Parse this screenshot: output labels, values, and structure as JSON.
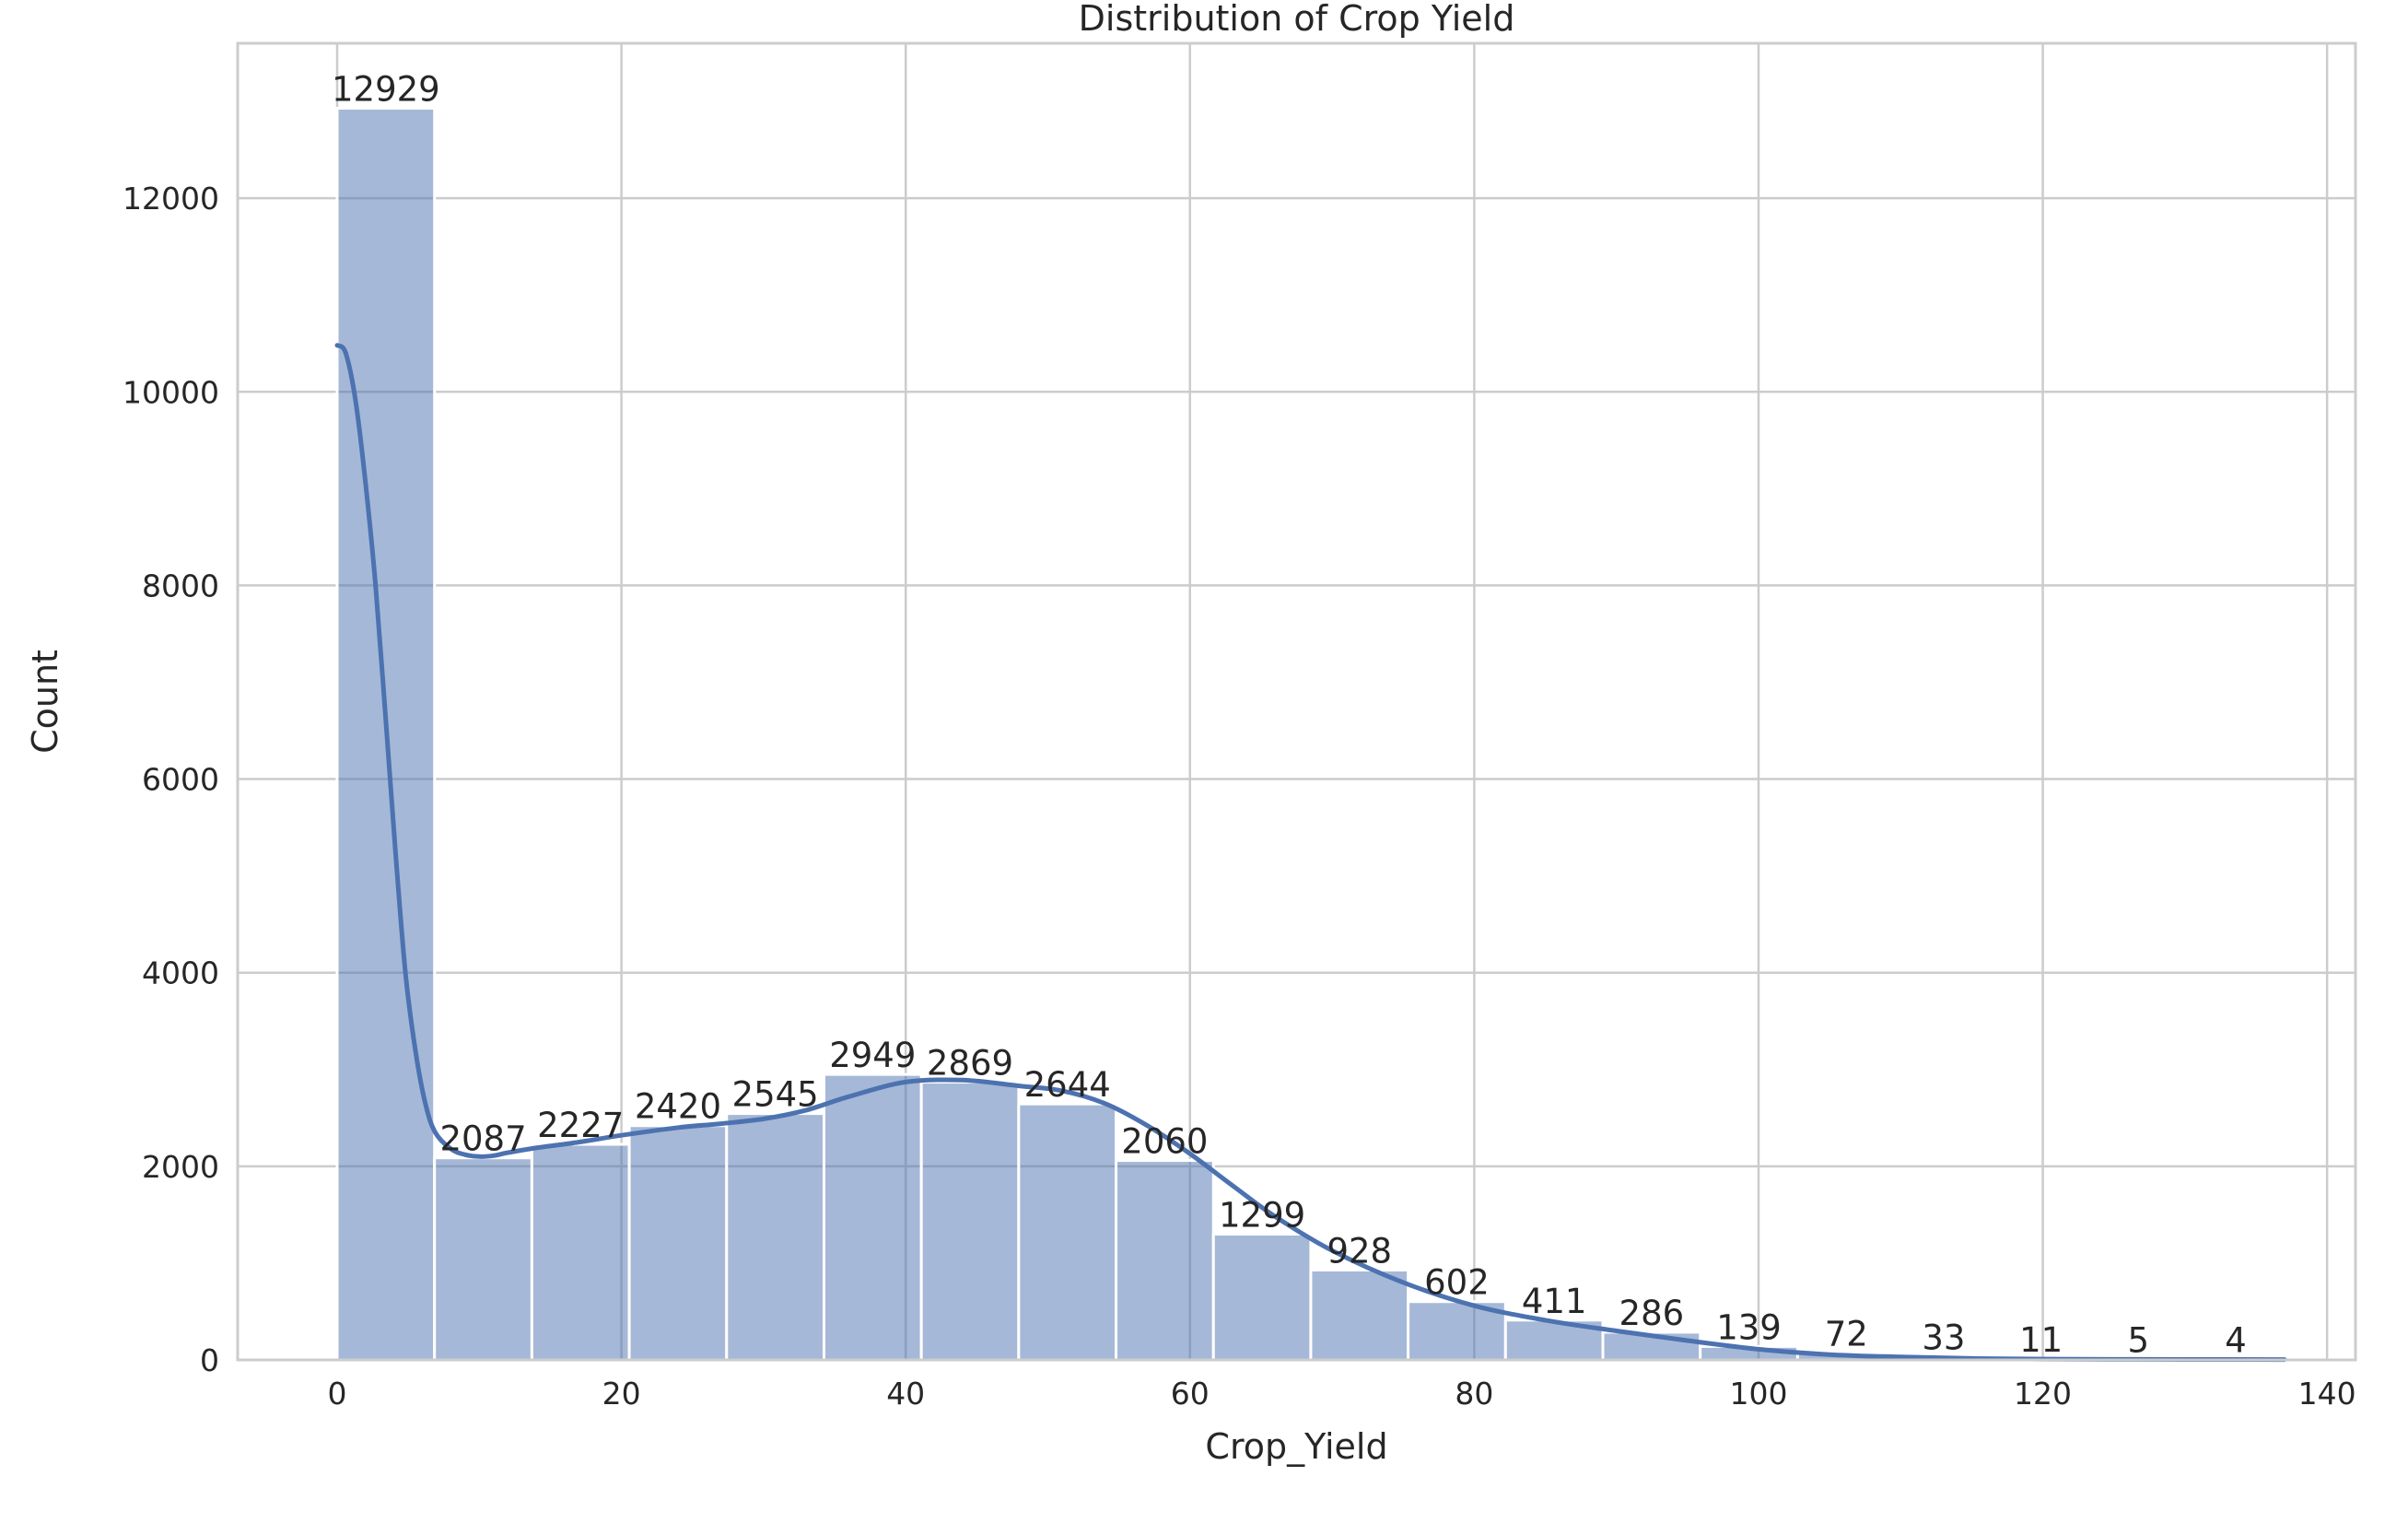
{
  "chart_data": {
    "type": "bar",
    "title": "Distribution of Crop Yield",
    "xlabel": "Crop_Yield",
    "ylabel": "Count",
    "xlim": [
      -7,
      142
    ],
    "ylim": [
      0,
      13600
    ],
    "xticks": [
      0,
      20,
      40,
      60,
      80,
      100,
      120,
      140
    ],
    "yticks": [
      0,
      2000,
      4000,
      6000,
      8000,
      10000,
      12000
    ],
    "bin_start": 0,
    "bin_width": 6.85,
    "values": [
      12929,
      2087,
      2227,
      2420,
      2545,
      2949,
      2869,
      2644,
      2060,
      1299,
      928,
      602,
      411,
      286,
      139,
      72,
      33,
      11,
      5,
      4
    ],
    "value_labels": [
      "12929",
      "2087",
      "2227",
      "2420",
      "2545",
      "2949",
      "2869",
      "2644",
      "2060",
      "1299",
      "928",
      "602",
      "411",
      "286",
      "139",
      "72",
      "33",
      "11",
      "5",
      "4"
    ],
    "kde": {
      "x": [
        0,
        0.6,
        1.3,
        2,
        2.7,
        3.4,
        4.1,
        4.8,
        5.5,
        6.2,
        6.9,
        8,
        9,
        10,
        11,
        12,
        14,
        17,
        20,
        24,
        27,
        30,
        33,
        36,
        40,
        44,
        48,
        51,
        54,
        57,
        60,
        63,
        66,
        70,
        75,
        80,
        85,
        90,
        95,
        100,
        105,
        110,
        115,
        120,
        125,
        130,
        137
      ],
      "y": [
        10480,
        10400,
        9900,
        9050,
        8000,
        6650,
        5250,
        4000,
        3200,
        2650,
        2350,
        2180,
        2120,
        2100,
        2110,
        2140,
        2190,
        2250,
        2320,
        2400,
        2440,
        2490,
        2580,
        2720,
        2870,
        2890,
        2830,
        2780,
        2650,
        2420,
        2130,
        1800,
        1480,
        1130,
        800,
        560,
        410,
        300,
        200,
        110,
        55,
        30,
        15,
        9,
        6,
        5,
        4
      ]
    },
    "colors": {
      "bar": "#4c72b0",
      "grid": "#cccccc",
      "text": "#262626"
    },
    "grid": true,
    "legend": "none"
  }
}
